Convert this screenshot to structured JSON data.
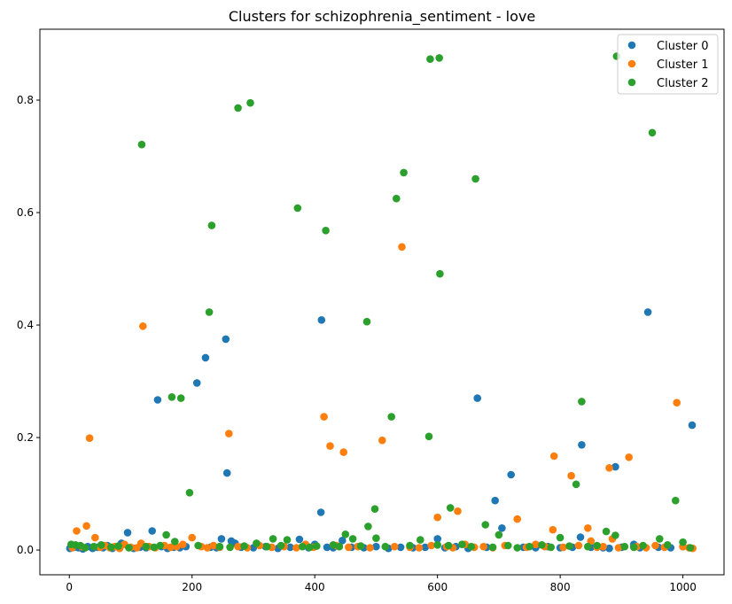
{
  "chart_data": {
    "type": "scatter",
    "title": "Clusters for schizophrenia_sentiment - love",
    "xlabel": "",
    "ylabel": "",
    "xlim": [
      -48,
      1067
    ],
    "ylim": [
      -0.044,
      0.926
    ],
    "xticks": [
      0,
      200,
      400,
      600,
      800,
      1000
    ],
    "yticks": [
      0.0,
      0.2,
      0.4,
      0.6,
      0.8
    ],
    "xtick_labels": [
      "0",
      "200",
      "400",
      "600",
      "800",
      "1000"
    ],
    "ytick_labels": [
      "0.0",
      "0.2",
      "0.4",
      "0.6",
      "0.8"
    ],
    "grid": false,
    "legend_position": "top-right",
    "series": [
      {
        "name": "Cluster 0",
        "color": "#1f77b4",
        "points": [
          [
            1,
            0.003
          ],
          [
            8,
            0.005
          ],
          [
            15,
            0.004
          ],
          [
            22,
            0.002
          ],
          [
            30,
            0.006
          ],
          [
            38,
            0.003
          ],
          [
            46,
            0.005
          ],
          [
            55,
            0.004
          ],
          [
            62,
            0.008
          ],
          [
            70,
            0.003
          ],
          [
            78,
            0.006
          ],
          [
            85,
            0.012
          ],
          [
            95,
            0.031
          ],
          [
            105,
            0.003
          ],
          [
            115,
            0.005
          ],
          [
            125,
            0.004
          ],
          [
            135,
            0.034
          ],
          [
            144,
            0.267
          ],
          [
            150,
            0.006
          ],
          [
            160,
            0.003
          ],
          [
            170,
            0.005
          ],
          [
            180,
            0.004
          ],
          [
            190,
            0.006
          ],
          [
            208,
            0.297
          ],
          [
            222,
            0.342
          ],
          [
            230,
            0.005
          ],
          [
            240,
            0.004
          ],
          [
            255,
            0.375
          ],
          [
            257,
            0.137
          ],
          [
            248,
            0.02
          ],
          [
            264,
            0.016
          ],
          [
            270,
            0.012
          ],
          [
            280,
            0.005
          ],
          [
            300,
            0.004
          ],
          [
            320,
            0.006
          ],
          [
            340,
            0.003
          ],
          [
            360,
            0.005
          ],
          [
            375,
            0.019
          ],
          [
            390,
            0.004
          ],
          [
            400,
            0.01
          ],
          [
            410,
            0.067
          ],
          [
            411,
            0.409
          ],
          [
            420,
            0.005
          ],
          [
            430,
            0.004
          ],
          [
            445,
            0.017
          ],
          [
            460,
            0.005
          ],
          [
            480,
            0.004
          ],
          [
            500,
            0.006
          ],
          [
            520,
            0.003
          ],
          [
            540,
            0.005
          ],
          [
            560,
            0.004
          ],
          [
            580,
            0.005
          ],
          [
            600,
            0.02
          ],
          [
            612,
            0.004
          ],
          [
            630,
            0.006
          ],
          [
            650,
            0.003
          ],
          [
            665,
            0.27
          ],
          [
            680,
            0.005
          ],
          [
            694,
            0.088
          ],
          [
            705,
            0.039
          ],
          [
            720,
            0.134
          ],
          [
            740,
            0.005
          ],
          [
            760,
            0.004
          ],
          [
            780,
            0.006
          ],
          [
            800,
            0.004
          ],
          [
            820,
            0.005
          ],
          [
            833,
            0.023
          ],
          [
            835,
            0.187
          ],
          [
            850,
            0.005
          ],
          [
            870,
            0.004
          ],
          [
            880,
            0.003
          ],
          [
            890,
            0.148
          ],
          [
            900,
            0.005
          ],
          [
            920,
            0.01
          ],
          [
            930,
            0.004
          ],
          [
            943,
            0.423
          ],
          [
            960,
            0.005
          ],
          [
            980,
            0.004
          ],
          [
            1000,
            0.006
          ],
          [
            1015,
            0.222
          ]
        ]
      },
      {
        "name": "Cluster 1",
        "color": "#ff7f0e",
        "points": [
          [
            5,
            0.004
          ],
          [
            12,
            0.034
          ],
          [
            20,
            0.006
          ],
          [
            28,
            0.043
          ],
          [
            33,
            0.199
          ],
          [
            42,
            0.022
          ],
          [
            50,
            0.005
          ],
          [
            58,
            0.008
          ],
          [
            66,
            0.004
          ],
          [
            74,
            0.006
          ],
          [
            82,
            0.003
          ],
          [
            90,
            0.01
          ],
          [
            100,
            0.005
          ],
          [
            110,
            0.004
          ],
          [
            117,
            0.012
          ],
          [
            120,
            0.398
          ],
          [
            130,
            0.006
          ],
          [
            140,
            0.004
          ],
          [
            155,
            0.008
          ],
          [
            165,
            0.005
          ],
          [
            175,
            0.006
          ],
          [
            185,
            0.01
          ],
          [
            200,
            0.022
          ],
          [
            215,
            0.006
          ],
          [
            225,
            0.004
          ],
          [
            235,
            0.008
          ],
          [
            245,
            0.005
          ],
          [
            260,
            0.207
          ],
          [
            275,
            0.006
          ],
          [
            290,
            0.004
          ],
          [
            310,
            0.008
          ],
          [
            330,
            0.005
          ],
          [
            350,
            0.006
          ],
          [
            370,
            0.004
          ],
          [
            385,
            0.01
          ],
          [
            398,
            0.005
          ],
          [
            415,
            0.237
          ],
          [
            425,
            0.185
          ],
          [
            435,
            0.008
          ],
          [
            447,
            0.174
          ],
          [
            455,
            0.005
          ],
          [
            470,
            0.006
          ],
          [
            490,
            0.004
          ],
          [
            510,
            0.195
          ],
          [
            530,
            0.006
          ],
          [
            542,
            0.539
          ],
          [
            555,
            0.005
          ],
          [
            570,
            0.004
          ],
          [
            590,
            0.008
          ],
          [
            600,
            0.058
          ],
          [
            615,
            0.006
          ],
          [
            625,
            0.004
          ],
          [
            633,
            0.069
          ],
          [
            645,
            0.01
          ],
          [
            660,
            0.005
          ],
          [
            675,
            0.006
          ],
          [
            690,
            0.004
          ],
          [
            710,
            0.008
          ],
          [
            730,
            0.055
          ],
          [
            745,
            0.005
          ],
          [
            760,
            0.01
          ],
          [
            775,
            0.006
          ],
          [
            788,
            0.036
          ],
          [
            790,
            0.167
          ],
          [
            805,
            0.005
          ],
          [
            818,
            0.132
          ],
          [
            830,
            0.008
          ],
          [
            845,
            0.039
          ],
          [
            850,
            0.016
          ],
          [
            860,
            0.005
          ],
          [
            870,
            0.006
          ],
          [
            880,
            0.146
          ],
          [
            885,
            0.02
          ],
          [
            895,
            0.004
          ],
          [
            912,
            0.165
          ],
          [
            925,
            0.006
          ],
          [
            940,
            0.004
          ],
          [
            955,
            0.008
          ],
          [
            970,
            0.005
          ],
          [
            990,
            0.262
          ],
          [
            1000,
            0.006
          ],
          [
            1010,
            0.004
          ],
          [
            1016,
            0.003
          ]
        ]
      },
      {
        "name": "Cluster 2",
        "color": "#2ca02c",
        "points": [
          [
            3,
            0.01
          ],
          [
            10,
            0.009
          ],
          [
            18,
            0.008
          ],
          [
            26,
            0.004
          ],
          [
            40,
            0.006
          ],
          [
            52,
            0.009
          ],
          [
            68,
            0.005
          ],
          [
            80,
            0.007
          ],
          [
            97,
            0.004
          ],
          [
            118,
            0.721
          ],
          [
            125,
            0.006
          ],
          [
            138,
            0.005
          ],
          [
            148,
            0.008
          ],
          [
            158,
            0.027
          ],
          [
            167,
            0.272
          ],
          [
            172,
            0.015
          ],
          [
            182,
            0.27
          ],
          [
            196,
            0.102
          ],
          [
            210,
            0.008
          ],
          [
            228,
            0.423
          ],
          [
            232,
            0.577
          ],
          [
            245,
            0.006
          ],
          [
            262,
            0.005
          ],
          [
            275,
            0.786
          ],
          [
            285,
            0.007
          ],
          [
            295,
            0.795
          ],
          [
            305,
            0.012
          ],
          [
            322,
            0.006
          ],
          [
            332,
            0.02
          ],
          [
            345,
            0.008
          ],
          [
            355,
            0.018
          ],
          [
            372,
            0.608
          ],
          [
            380,
            0.006
          ],
          [
            392,
            0.005
          ],
          [
            403,
            0.007
          ],
          [
            418,
            0.568
          ],
          [
            430,
            0.009
          ],
          [
            440,
            0.006
          ],
          [
            450,
            0.028
          ],
          [
            462,
            0.02
          ],
          [
            475,
            0.007
          ],
          [
            485,
            0.406
          ],
          [
            487,
            0.042
          ],
          [
            498,
            0.073
          ],
          [
            500,
            0.021
          ],
          [
            515,
            0.006
          ],
          [
            525,
            0.237
          ],
          [
            533,
            0.625
          ],
          [
            545,
            0.671
          ],
          [
            555,
            0.008
          ],
          [
            572,
            0.018
          ],
          [
            586,
            0.202
          ],
          [
            588,
            0.873
          ],
          [
            600,
            0.009
          ],
          [
            603,
            0.875
          ],
          [
            604,
            0.491
          ],
          [
            618,
            0.008
          ],
          [
            621,
            0.075
          ],
          [
            640,
            0.01
          ],
          [
            655,
            0.006
          ],
          [
            662,
            0.66
          ],
          [
            678,
            0.045
          ],
          [
            690,
            0.005
          ],
          [
            700,
            0.027
          ],
          [
            715,
            0.008
          ],
          [
            730,
            0.004
          ],
          [
            750,
            0.006
          ],
          [
            770,
            0.009
          ],
          [
            785,
            0.005
          ],
          [
            800,
            0.022
          ],
          [
            815,
            0.007
          ],
          [
            826,
            0.117
          ],
          [
            835,
            0.264
          ],
          [
            845,
            0.006
          ],
          [
            860,
            0.008
          ],
          [
            875,
            0.033
          ],
          [
            890,
            0.026
          ],
          [
            892,
            0.878
          ],
          [
            905,
            0.006
          ],
          [
            920,
            0.005
          ],
          [
            935,
            0.008
          ],
          [
            950,
            0.742
          ],
          [
            962,
            0.02
          ],
          [
            975,
            0.009
          ],
          [
            988,
            0.088
          ],
          [
            1000,
            0.014
          ],
          [
            1012,
            0.004
          ]
        ]
      }
    ]
  }
}
